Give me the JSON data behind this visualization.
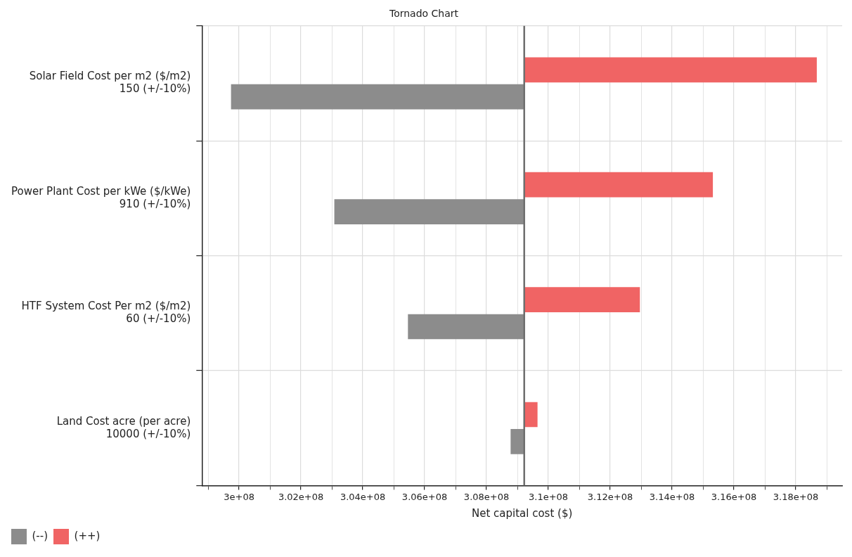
{
  "chart_data": {
    "type": "bar",
    "orientation": "horizontal",
    "title": "Tornado Chart",
    "xlabel": "Net capital cost ($)",
    "categories": [
      "Solar Field Cost per m2 ($/m2)\n150 (+/-10%)",
      "Power Plant Cost per kWe ($/kWe)\n910 (+/-10%)",
      "HTF System Cost Per m2 ($/m2)\n60 (+/-10%)",
      "Land Cost acre (per acre)\n10000 (+/-10%)"
    ],
    "series": [
      {
        "name": "(++)",
        "color": "#f06464",
        "base": [
          309220000,
          309220000,
          309220000,
          309220000
        ],
        "values": [
          9460000,
          6100000,
          3740000,
          430000
        ]
      },
      {
        "name": "(--)",
        "color": "#8c8c8c",
        "base": [
          309220000,
          309220000,
          309220000,
          309220000
        ],
        "values": [
          -9480000,
          -6140000,
          -3760000,
          -440000
        ]
      }
    ],
    "xlim": [
      298800000,
      319500000
    ],
    "xticks": [
      {
        "value": 299000000,
        "label": null
      },
      {
        "value": 300000000,
        "label": "3e+08"
      },
      {
        "value": 301000000,
        "label": null
      },
      {
        "value": 302000000,
        "label": "3.02e+08"
      },
      {
        "value": 303000000,
        "label": null
      },
      {
        "value": 304000000,
        "label": "3.04e+08"
      },
      {
        "value": 305000000,
        "label": null
      },
      {
        "value": 306000000,
        "label": "3.06e+08"
      },
      {
        "value": 307000000,
        "label": null
      },
      {
        "value": 308000000,
        "label": "3.08e+08"
      },
      {
        "value": 309000000,
        "label": null
      },
      {
        "value": 310000000,
        "label": "3.1e+08"
      },
      {
        "value": 311000000,
        "label": null
      },
      {
        "value": 312000000,
        "label": "3.12e+08"
      },
      {
        "value": 313000000,
        "label": null
      },
      {
        "value": 314000000,
        "label": "3.14e+08"
      },
      {
        "value": 315000000,
        "label": null
      },
      {
        "value": 316000000,
        "label": "3.16e+08"
      },
      {
        "value": 317000000,
        "label": null
      },
      {
        "value": 318000000,
        "label": "3.18e+08"
      },
      {
        "value": 319000000,
        "label": null
      }
    ],
    "ref_lines": [
      {
        "axis": "x",
        "value": 309220000,
        "color": "#6e6e6e"
      }
    ],
    "grid": true,
    "legend": "bottom left"
  }
}
